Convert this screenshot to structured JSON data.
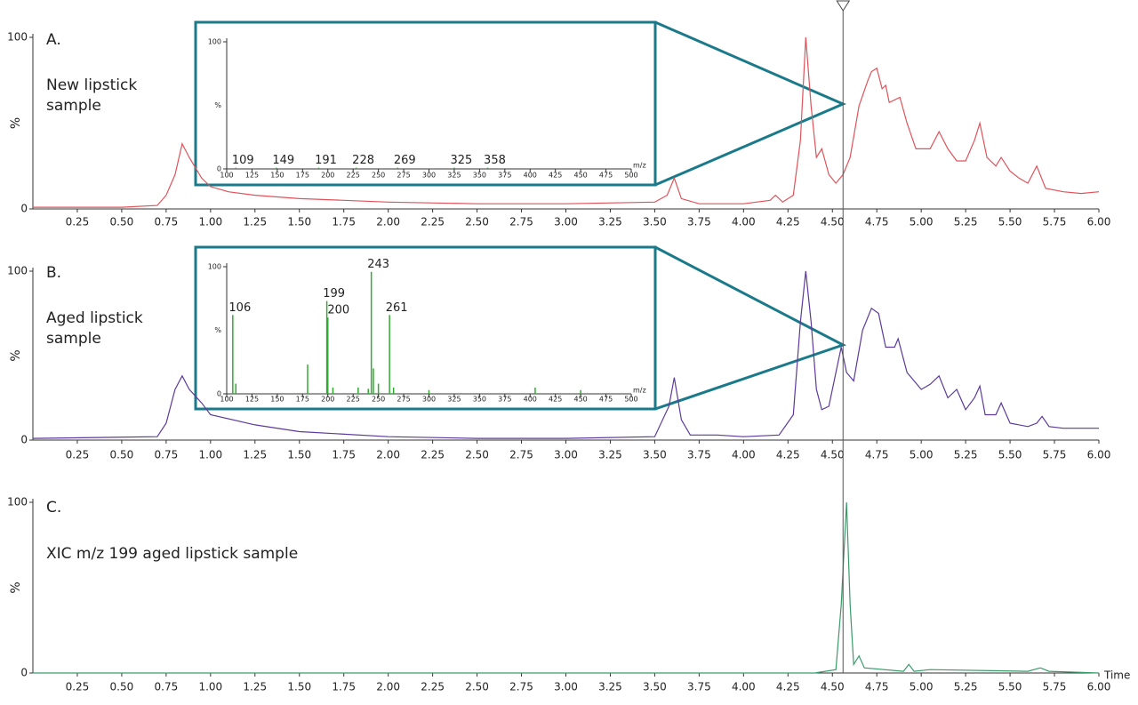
{
  "cursor_x": 4.56,
  "chart_data": [
    {
      "type": "line",
      "label": "A.",
      "annotation": [
        "New lipstick",
        "sample"
      ],
      "ylabel": "%",
      "color": "#e0525a",
      "xlim": [
        0,
        6
      ],
      "ylim": [
        0,
        100
      ],
      "yticks": [
        0,
        100
      ],
      "xticks": [
        0.25,
        {
          "value": 0.5,
          "label": "0.50"
        },
        0.75,
        {
          "value": 1,
          "label": "1.00"
        },
        1.25,
        {
          "value": 1.5,
          "label": "1.50"
        },
        1.75,
        {
          "value": 2,
          "label": "2.00"
        },
        2.25,
        {
          "value": 2.5,
          "label": "2.50"
        },
        2.75,
        {
          "value": 3,
          "label": "3.00"
        },
        3.25,
        {
          "value": 3.5,
          "label": "3.50"
        },
        3.75,
        {
          "value": 4,
          "label": "4.00"
        },
        4.25,
        {
          "value": 4.5,
          "label": "4.50"
        },
        4.75,
        {
          "value": 5,
          "label": "5.00"
        },
        5.25,
        {
          "value": 5.5,
          "label": "5.50"
        },
        5.75,
        {
          "value": 6,
          "label": "6.00"
        }
      ],
      "x": [
        0,
        0.5,
        0.7,
        0.75,
        0.8,
        0.84,
        0.88,
        0.95,
        1.0,
        1.1,
        1.25,
        1.5,
        1.75,
        2.0,
        2.5,
        3.0,
        3.5,
        3.57,
        3.61,
        3.65,
        3.75,
        4.0,
        4.15,
        4.18,
        4.22,
        4.28,
        4.32,
        4.35,
        4.38,
        4.41,
        4.44,
        4.48,
        4.52,
        4.56,
        4.6,
        4.65,
        4.7,
        4.72,
        4.75,
        4.78,
        4.8,
        4.82,
        4.88,
        4.92,
        4.97,
        5.05,
        5.1,
        5.15,
        5.2,
        5.25,
        5.3,
        5.33,
        5.37,
        5.42,
        5.45,
        5.5,
        5.55,
        5.6,
        5.65,
        5.7,
        5.8,
        5.9,
        6.0
      ],
      "values": [
        1,
        1,
        2,
        8,
        20,
        38,
        30,
        18,
        13,
        10,
        8,
        6,
        5,
        4,
        3,
        3,
        4,
        8,
        18,
        6,
        3,
        3,
        5,
        8,
        4,
        8,
        40,
        100,
        60,
        30,
        35,
        20,
        15,
        20,
        30,
        60,
        75,
        80,
        82,
        70,
        72,
        62,
        65,
        50,
        35,
        35,
        45,
        35,
        28,
        28,
        40,
        50,
        30,
        25,
        30,
        22,
        18,
        15,
        25,
        12,
        10,
        9,
        10
      ]
    },
    {
      "type": "line",
      "label": "B.",
      "annotation": [
        "Aged lipstick",
        "sample"
      ],
      "ylabel": "%",
      "color": "#5b3a9b",
      "xlim": [
        0,
        6
      ],
      "ylim": [
        0,
        100
      ],
      "yticks": [
        0,
        100
      ],
      "xticks": [
        0.25,
        {
          "value": 0.5,
          "label": "0.50"
        },
        0.75,
        {
          "value": 1,
          "label": "1.00"
        },
        1.25,
        {
          "value": 1.5,
          "label": "1.50"
        },
        1.75,
        {
          "value": 2,
          "label": "2.00"
        },
        2.25,
        {
          "value": 2.5,
          "label": "2.50"
        },
        2.75,
        {
          "value": 3,
          "label": "3.00"
        },
        3.25,
        {
          "value": 3.5,
          "label": "3.50"
        },
        3.75,
        {
          "value": 4,
          "label": "4.00"
        },
        4.25,
        {
          "value": 4.5,
          "label": "4.50"
        },
        4.75,
        {
          "value": 5,
          "label": "5.00"
        },
        5.25,
        {
          "value": 5.5,
          "label": "5.50"
        },
        5.75,
        {
          "value": 6,
          "label": "6.00"
        }
      ],
      "x": [
        0,
        0.7,
        0.75,
        0.8,
        0.84,
        0.88,
        0.95,
        1.0,
        1.25,
        1.5,
        2.0,
        2.5,
        3.0,
        3.5,
        3.58,
        3.61,
        3.65,
        3.7,
        3.85,
        4.0,
        4.2,
        4.28,
        4.32,
        4.35,
        4.38,
        4.41,
        4.44,
        4.48,
        4.52,
        4.55,
        4.58,
        4.62,
        4.67,
        4.72,
        4.76,
        4.8,
        4.85,
        4.87,
        4.92,
        5.0,
        5.05,
        5.1,
        5.15,
        5.2,
        5.25,
        5.3,
        5.33,
        5.36,
        5.42,
        5.45,
        5.5,
        5.6,
        5.65,
        5.68,
        5.72,
        5.8,
        6.0
      ],
      "values": [
        1,
        2,
        10,
        30,
        38,
        30,
        22,
        15,
        9,
        5,
        2,
        1,
        1,
        2,
        20,
        37,
        12,
        3,
        3,
        2,
        3,
        15,
        70,
        100,
        70,
        30,
        18,
        20,
        40,
        55,
        40,
        35,
        65,
        78,
        75,
        55,
        55,
        60,
        40,
        30,
        33,
        38,
        25,
        30,
        18,
        25,
        32,
        15,
        15,
        22,
        10,
        8,
        10,
        14,
        8,
        7,
        7
      ]
    },
    {
      "type": "line",
      "label": "C.",
      "annotation": [
        "XIC m/z 199 aged lipstick sample"
      ],
      "ylabel": "%",
      "xlabel": "Time",
      "color": "#3a9a6a",
      "xlim": [
        0,
        6
      ],
      "ylim": [
        0,
        100
      ],
      "yticks": [
        0,
        100
      ],
      "xticks": [
        0.25,
        {
          "value": 0.5,
          "label": "0.50"
        },
        0.75,
        {
          "value": 1,
          "label": "1.00"
        },
        1.25,
        {
          "value": 1.5,
          "label": "1.50"
        },
        1.75,
        {
          "value": 2,
          "label": "2.00"
        },
        2.25,
        {
          "value": 2.5,
          "label": "2.50"
        },
        2.75,
        {
          "value": 3,
          "label": "3.00"
        },
        3.25,
        {
          "value": 3.5,
          "label": "3.50"
        },
        3.75,
        {
          "value": 4,
          "label": "4.00"
        },
        4.25,
        {
          "value": 4.5,
          "label": "4.50"
        },
        4.75,
        {
          "value": 5,
          "label": "5.00"
        },
        5.25,
        {
          "value": 5.5,
          "label": "5.50"
        },
        5.75,
        {
          "value": 6,
          "label": "6.00"
        }
      ],
      "x": [
        0,
        4.4,
        4.52,
        4.55,
        4.58,
        4.6,
        4.62,
        4.65,
        4.68,
        4.9,
        4.93,
        4.96,
        5.05,
        5.6,
        5.67,
        5.72,
        6.0
      ],
      "values": [
        0,
        0,
        2,
        40,
        100,
        40,
        5,
        10,
        3,
        1,
        5,
        1,
        2,
        1,
        3,
        1,
        0
      ]
    },
    {
      "type": "spectrum",
      "ylabel": "%",
      "xlabel": "m/z",
      "color": "#33aa33",
      "xlim": [
        100,
        500
      ],
      "ylim": [
        0,
        100
      ],
      "yticks": [
        0,
        100
      ],
      "xticks": [
        100,
        125,
        150,
        175,
        200,
        225,
        250,
        275,
        300,
        325,
        350,
        375,
        400,
        425,
        450,
        475,
        500
      ],
      "x": [
        109,
        149,
        191,
        228,
        269,
        325,
        358
      ],
      "values": [
        1,
        1,
        1,
        1,
        1,
        1,
        1
      ],
      "peak_labels": [
        109,
        149,
        191,
        228,
        269,
        325,
        358
      ]
    },
    {
      "type": "spectrum",
      "ylabel": "%",
      "xlabel": "m/z",
      "color": "#33aa33",
      "xlim": [
        100,
        500
      ],
      "ylim": [
        0,
        100
      ],
      "yticks": [
        0,
        100
      ],
      "xticks": [
        100,
        125,
        150,
        175,
        200,
        225,
        250,
        275,
        300,
        325,
        350,
        375,
        400,
        425,
        450,
        475,
        500
      ],
      "x": [
        106,
        109,
        180,
        199,
        200,
        205,
        230,
        240,
        243,
        245,
        250,
        261,
        265,
        300,
        405,
        450
      ],
      "values": [
        62,
        8,
        23,
        73,
        60,
        5,
        5,
        4,
        96,
        20,
        8,
        62,
        5,
        3,
        5,
        3
      ],
      "peak_labels": [
        106,
        null,
        null,
        199,
        200,
        null,
        null,
        null,
        243,
        null,
        null,
        261,
        null,
        null,
        null,
        null
      ]
    }
  ]
}
